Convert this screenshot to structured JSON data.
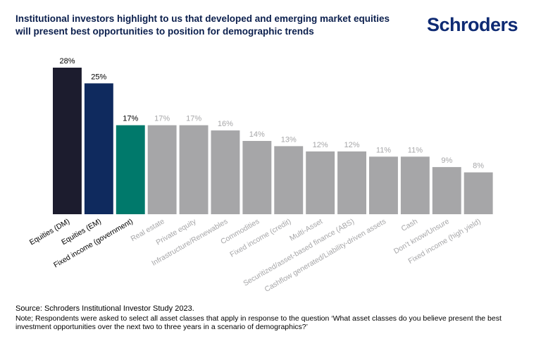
{
  "header": {
    "title_line1": "Institutional investors highlight to us that developed and emerging market equities",
    "title_line2": "will present best opportunities to position for demographic trends",
    "logo": "Schroders"
  },
  "footer": {
    "source": "Source: Schroders Institutional Investor Study 2023.",
    "note": "Note; Respondents were asked to select all asset classes that apply in response to the question ‘What asset classes do you believe present the best investment opportunities over the next two to three years in a scenario of demographics?’"
  },
  "chart_data": {
    "type": "bar",
    "categories": [
      "Equities (DM)",
      "Equities (EM)",
      "Fixed income (government)",
      "Real estate",
      "Private equity",
      "Infrastructure/Renewables",
      "Commodities",
      "Fixed income (credit)",
      "Multi-Asset",
      "Securitized/asset-based finance (ABS)",
      "Cashflow generated/Liability-driven assets",
      "Cash",
      "Don’t know/Unsure",
      "Fixed income (high yield)"
    ],
    "values": [
      28,
      25,
      17,
      17,
      17,
      16,
      14,
      13,
      12,
      12,
      11,
      11,
      9,
      8
    ],
    "data_labels": [
      "28%",
      "25%",
      "17%",
      "17%",
      "17%",
      "16%",
      "14%",
      "13%",
      "12%",
      "12%",
      "11%",
      "11%",
      "9%",
      "8%"
    ],
    "bar_colors": [
      "#1c1c2e",
      "#0f2a5e",
      "#00796b",
      "#a6a6a8",
      "#a6a6a8",
      "#a6a6a8",
      "#a6a6a8",
      "#a6a6a8",
      "#a6a6a8",
      "#a6a6a8",
      "#a6a6a8",
      "#a6a6a8",
      "#a6a6a8",
      "#a6a6a8"
    ],
    "highlight_label_color": "#000000",
    "muted_label_color": "#a6a6a8",
    "highlight_count": 3,
    "ylim": [
      0,
      28
    ],
    "grid": false,
    "legend": "none"
  }
}
